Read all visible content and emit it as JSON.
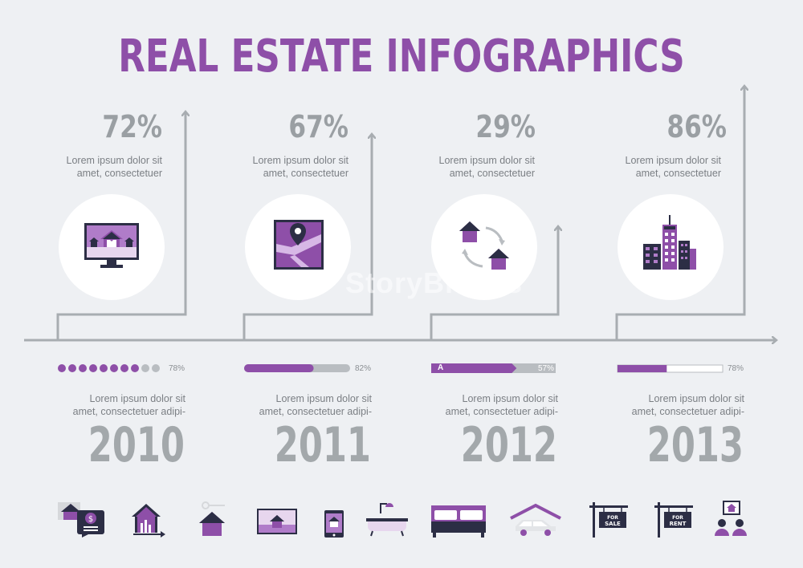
{
  "title": "REAL ESTATE INFOGRAPHICS",
  "watermark": "StoryBlocks",
  "colors": {
    "purple": "#8e4fa8",
    "purple_light": "#b07cc9",
    "navy": "#2c2e45",
    "gray": "#a3a8ab",
    "line": "#a8adb1",
    "background": "#eef0f3"
  },
  "columns": [
    {
      "percent": "72%",
      "desc_line1": "Lorem ipsum dolor sit",
      "desc_line2": "amet, consectetuer",
      "icon": "monitor-houses-icon",
      "progress_style": "dots",
      "progress_value": 0.78,
      "progress_label": "78%",
      "year_desc_line1": "Lorem ipsum dolor sit",
      "year_desc_line2": "amet, consectetuer adipi-",
      "year": "2010"
    },
    {
      "percent": "67%",
      "desc_line1": "Lorem ipsum dolor sit",
      "desc_line2": "amet, consectetuer",
      "icon": "map-pin-icon",
      "progress_style": "rounded-bar",
      "progress_value": 0.82,
      "progress_label": "82%",
      "year_desc_line1": "Lorem ipsum dolor sit",
      "year_desc_line2": "amet, consectetuer adipi-",
      "year": "2011"
    },
    {
      "percent": "29%",
      "desc_line1": "Lorem ipsum dolor sit",
      "desc_line2": "amet, consectetuer",
      "icon": "house-exchange-icon",
      "progress_style": "arrow-bar",
      "progress_value": 0.57,
      "progress_label": "57%",
      "progress_tag": "A",
      "year_desc_line1": "Lorem ipsum dolor sit",
      "year_desc_line2": "amet, consectetuer adipi-",
      "year": "2012"
    },
    {
      "percent": "86%",
      "desc_line1": "Lorem ipsum dolor sit",
      "desc_line2": "amet, consectetuer",
      "icon": "city-buildings-icon",
      "progress_style": "flat-bar",
      "progress_value": 0.78,
      "progress_label": "78%",
      "year_desc_line1": "Lorem ipsum dolor sit",
      "year_desc_line2": "amet, consectetuer adipi-",
      "year": "2013"
    }
  ],
  "bottom_icons": [
    "house-money-chat-icon",
    "house-growth-chart-icon",
    "house-key-icon",
    "house-on-laptop-icon",
    "house-on-tablet-icon",
    "bathtub-icon",
    "double-bed-icon",
    "car-garage-icon",
    "for-sale-sign-icon",
    "for-rent-sign-icon",
    "agents-presentation-icon"
  ],
  "signs": {
    "sale_line1": "FOR",
    "sale_line2": "SALE",
    "rent_line1": "FOR",
    "rent_line2": "RENT"
  }
}
